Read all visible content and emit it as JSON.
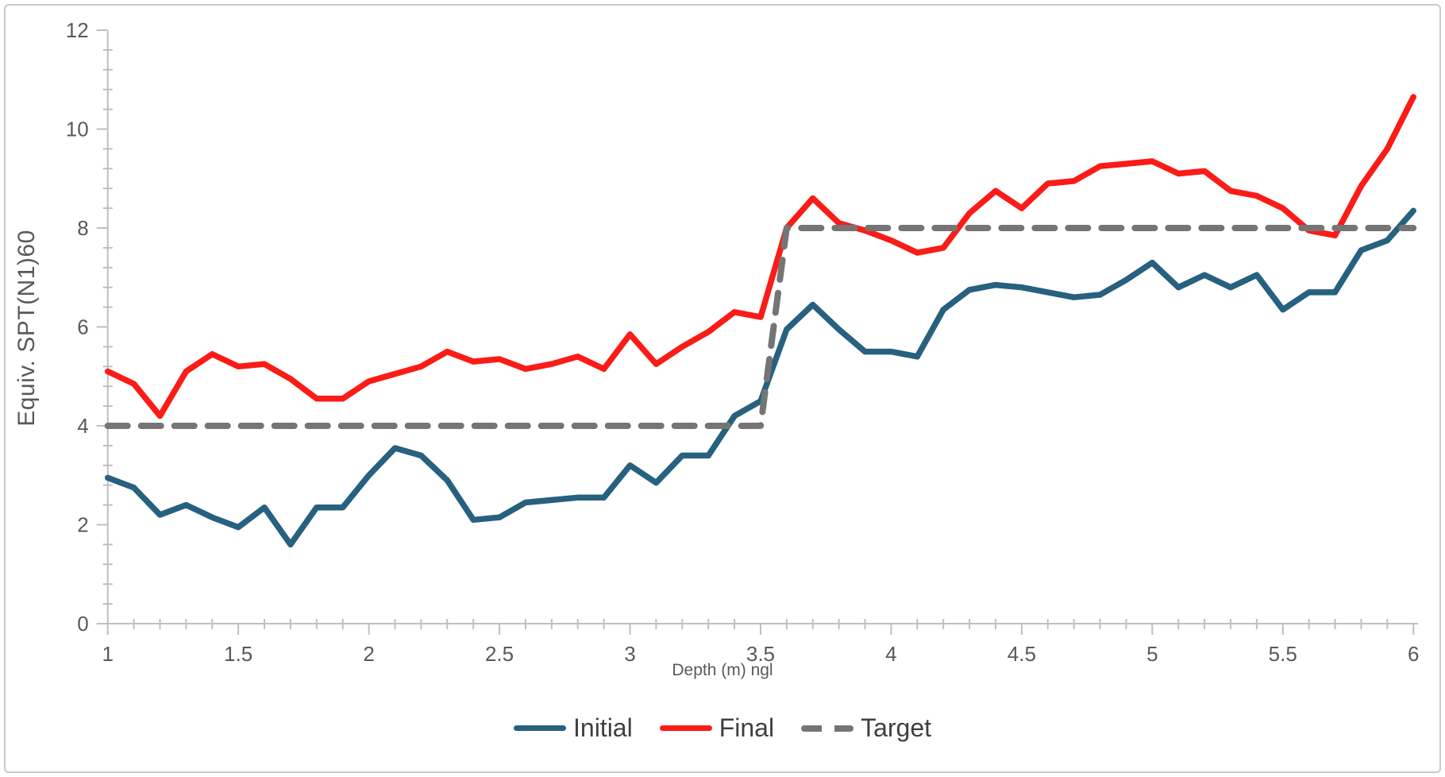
{
  "window": {
    "background": "#ffffff",
    "border_color": "#c9cacb"
  },
  "chart_data": {
    "type": "line",
    "title": "",
    "xlabel": "Depth (m) ngl",
    "ylabel": "Equiv. SPT(N1)60",
    "xlim": [
      1,
      6
    ],
    "ylim": [
      0,
      12
    ],
    "x_major_tick_step": 0.5,
    "x_minor_tick_step": 0.1,
    "y_major_tick_step": 2,
    "y_minor_tick_step": 0.4,
    "grid": false,
    "legend_position": "bottom-center",
    "axis_color": "#bfbfbf",
    "tick_label_color": "#595959",
    "x": [
      1.0,
      1.1,
      1.2,
      1.3,
      1.4,
      1.5,
      1.6,
      1.7,
      1.8,
      1.9,
      2.0,
      2.1,
      2.2,
      2.3,
      2.4,
      2.5,
      2.6,
      2.7,
      2.8,
      2.9,
      3.0,
      3.1,
      3.2,
      3.3,
      3.4,
      3.5,
      3.6,
      3.7,
      3.8,
      3.9,
      4.0,
      4.1,
      4.2,
      4.3,
      4.4,
      4.5,
      4.6,
      4.7,
      4.8,
      4.9,
      5.0,
      5.1,
      5.2,
      5.3,
      5.4,
      5.5,
      5.6,
      5.7,
      5.8,
      5.9,
      6.0
    ],
    "series": [
      {
        "name": "Initial",
        "style": "solid",
        "color": "#26617f",
        "values": [
          2.95,
          2.75,
          2.2,
          2.4,
          2.15,
          1.95,
          2.35,
          1.6,
          2.35,
          2.35,
          3.0,
          3.55,
          3.4,
          2.9,
          2.1,
          2.15,
          2.45,
          2.5,
          2.55,
          2.55,
          3.2,
          2.85,
          3.4,
          3.4,
          4.2,
          4.5,
          5.95,
          6.45,
          5.95,
          5.5,
          5.5,
          5.4,
          6.35,
          6.75,
          6.85,
          6.8,
          6.7,
          6.6,
          6.65,
          6.95,
          7.3,
          6.8,
          7.05,
          6.8,
          7.05,
          6.35,
          6.7,
          6.7,
          7.55,
          7.75,
          8.35
        ]
      },
      {
        "name": "Final",
        "style": "solid",
        "color": "#fb1b17",
        "values": [
          5.1,
          4.85,
          4.2,
          5.1,
          5.45,
          5.2,
          5.25,
          4.95,
          4.55,
          4.55,
          4.9,
          5.05,
          5.2,
          5.5,
          5.3,
          5.35,
          5.15,
          5.25,
          5.4,
          5.15,
          5.85,
          5.25,
          5.6,
          5.9,
          6.3,
          6.2,
          8.0,
          8.6,
          8.1,
          7.95,
          7.75,
          7.5,
          7.6,
          8.3,
          8.75,
          8.4,
          8.9,
          8.95,
          9.25,
          9.3,
          9.35,
          9.1,
          9.15,
          8.75,
          8.65,
          8.4,
          7.95,
          7.85,
          8.85,
          9.6,
          10.65
        ]
      },
      {
        "name": "Target",
        "style": "dashed",
        "color": "#757575",
        "points": [
          [
            1,
            4
          ],
          [
            3.5,
            4
          ],
          [
            3.6,
            8
          ],
          [
            6,
            8
          ]
        ]
      }
    ]
  }
}
